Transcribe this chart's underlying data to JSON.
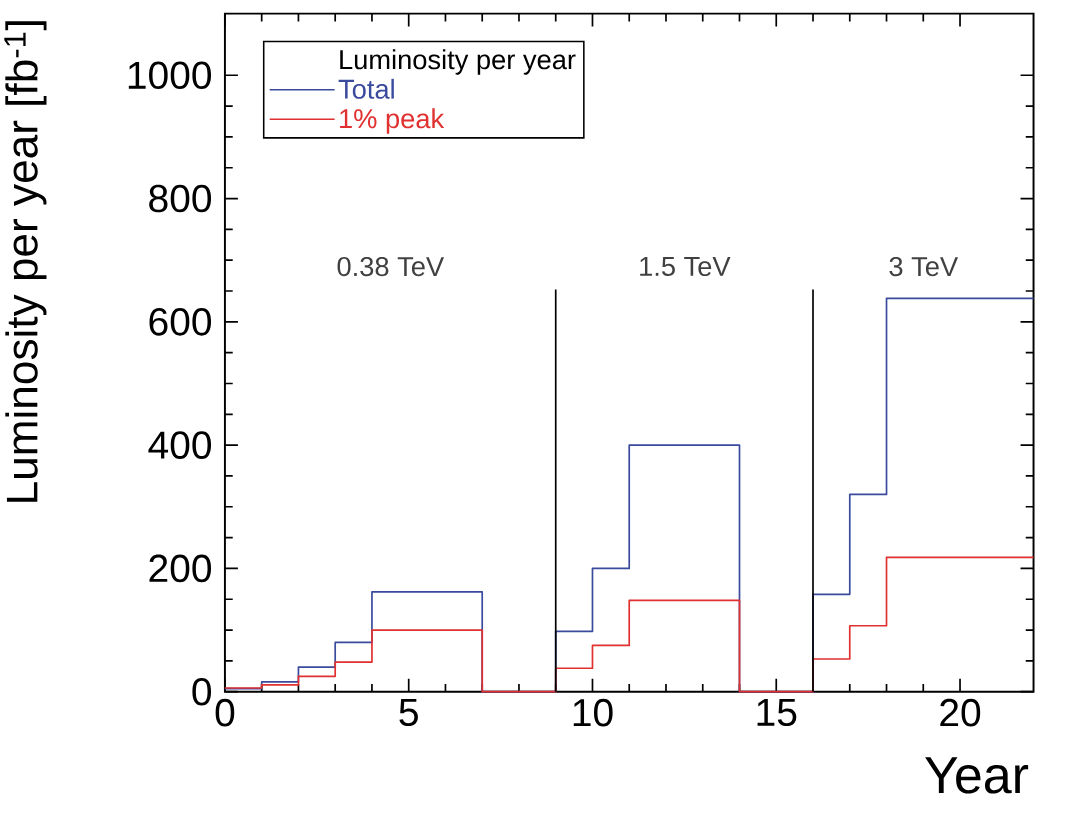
{
  "chart_data": {
    "type": "step",
    "xlabel": "Year",
    "ylabel": "Luminosity per year [fb$^{-1}$]",
    "legend_title": "Luminosity per year",
    "x": [
      0,
      1,
      2,
      3,
      4,
      7,
      9,
      10,
      11,
      14,
      16,
      17,
      18,
      22
    ],
    "series": [
      {
        "name": "Total",
        "color": "#3a4a9c",
        "values": [
          5,
          16,
          40,
          80,
          162,
          0,
          98,
          200,
          400,
          0,
          158,
          320,
          638,
          638
        ]
      },
      {
        "name": "1% peak",
        "color": "#e03030",
        "values": [
          6,
          11,
          25,
          48,
          100,
          0,
          38,
          75,
          148,
          0,
          53,
          107,
          218,
          218
        ]
      }
    ],
    "xlim": [
      0,
      22
    ],
    "ylim": [
      0,
      1100
    ],
    "xticks": [
      0,
      5,
      10,
      15,
      20
    ],
    "yticks": [
      0,
      200,
      400,
      600,
      800,
      1000
    ],
    "ref_lines": [
      {
        "axis": "x",
        "value": 9,
        "color": "#000000"
      },
      {
        "axis": "x",
        "value": 16,
        "color": "#000000"
      }
    ],
    "annotations": [
      "0.38 TeV",
      "1.5 TeV",
      "3 TeV"
    ],
    "legend": "top left",
    "grid": false,
    "marker": "none",
    "line_style": "solid"
  }
}
